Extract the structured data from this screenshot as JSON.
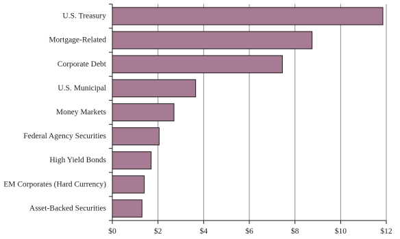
{
  "chart_data": {
    "type": "bar",
    "orientation": "horizontal",
    "categories": [
      "U.S. Treasury",
      "Mortgage-Related",
      "Corporate Debt",
      "U.S. Municipal",
      "Money Markets",
      "Federal Agency Securities",
      "High Yield Bonds",
      "EM Corporates (Hard Currency)",
      "Asset-Backed Securities"
    ],
    "values": [
      11.85,
      8.75,
      7.45,
      3.65,
      2.7,
      2.05,
      1.7,
      1.4,
      1.3
    ],
    "xlim": [
      0,
      12
    ],
    "x_ticks": [
      0,
      2,
      4,
      6,
      8,
      10,
      12
    ],
    "x_tick_labels": [
      "$0",
      "$2",
      "$4",
      "$6",
      "$8",
      "$10",
      "$12"
    ],
    "title": "",
    "xlabel": "",
    "ylabel": "",
    "grid": "vertical",
    "legend": "none",
    "colors": {
      "bar_fill": "#a87b94",
      "bar_stroke": "#1a1a1a",
      "grid": "#8c8c8c",
      "axis": "#1a1a1a"
    }
  }
}
